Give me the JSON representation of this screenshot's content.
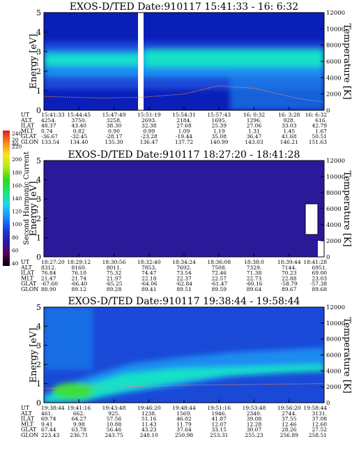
{
  "colors": {
    "spectrogram_background": "#0a1fb8",
    "low_energy_band": "#1a49d8",
    "mid_band": "#1a8cf0",
    "peak_band": "#19e0c8",
    "hot_spot": "#3bdf3b",
    "temperature_trace": "#e48a78",
    "quiet_panel": "#2a1a9a",
    "data_gap": "#ffffff"
  },
  "colorbar": {
    "label": "Second Harmonic Current",
    "ticks": [
      "40",
      "60",
      "80",
      "100",
      "120",
      "140",
      "160",
      "180",
      "200",
      "220",
      "240"
    ],
    "clipped_ticks": [
      "20",
      "40"
    ],
    "colors": [
      "#000000",
      "#5a005a",
      "#2a18a0",
      "#1840d8",
      "#1890ff",
      "#18d8e8",
      "#18e878",
      "#30d818",
      "#b0e818",
      "#f8e818",
      "#f88818",
      "#e81818"
    ]
  },
  "chart_data": [
    {
      "type": "heatmap",
      "title": "EXOS-D/TED   Date:910117   15:41:33 - 16: 6:32",
      "ylabel": "Energy [eV]",
      "ylabel_right": "Temperature [K]",
      "ylim": [
        0,
        5
      ],
      "ylim_right": [
        0,
        12000
      ],
      "yticks": [
        "0",
        "1",
        "2",
        "3",
        "4",
        "5"
      ],
      "yticks_right": [
        "0",
        "2000",
        "4000",
        "6000",
        "8000",
        "10000",
        "12000"
      ],
      "data_gap_times": [
        "15:51:19"
      ],
      "peak_energy_eV": 2.6,
      "temperature_K": {
        "x": [
          0,
          0.2,
          0.35,
          0.5,
          0.62,
          0.75,
          0.9,
          1.0
        ],
        "y": [
          1700,
          1500,
          1600,
          2000,
          3000,
          2700,
          1500,
          1000
        ]
      },
      "ephemeris": {
        "labels": [
          "UT",
          "ALT",
          "ILAT",
          "MLT",
          "GLAT",
          "GLON"
        ],
        "columns": [
          [
            "15:41:33",
            "4254.",
            "48.37",
            "0.74",
            "-36.67",
            "133.54"
          ],
          [
            "15:44:45",
            "3750.",
            "43.40",
            "0.82",
            "-32.45",
            "134.40"
          ],
          [
            "15:47:49",
            "3258.",
            "38.30",
            "0.90",
            "-28.17",
            "135.30"
          ],
          [
            "15:51:19",
            "2693.",
            "32.38",
            "0.99",
            "-23.28",
            "136.47"
          ],
          [
            "15:54:31",
            "2184.",
            "27.68",
            "1.09",
            "-19.44",
            "137.72"
          ],
          [
            "15:57:43",
            "1695.",
            "25.39",
            "1.19",
            "35.08",
            "140.99"
          ],
          [
            "16: 0:32",
            "1296.",
            "27.06",
            "1.31",
            "36.47",
            "143.03"
          ],
          [
            "16: 3:28",
            "928.",
            "33.03",
            "1.45",
            "41.68",
            "146.21"
          ],
          [
            "16: 6:32",
            "616.",
            "42.79",
            "1.67",
            "50.51",
            "151.63"
          ]
        ]
      }
    },
    {
      "type": "heatmap",
      "title": "EXOS-D/TED   Date:910117   18:27:20 - 18:41:28",
      "ylabel": "Energy [eV]",
      "ylabel_right": "Temperature [K]",
      "ylim": [
        0,
        5
      ],
      "ylim_right": [
        0,
        12000
      ],
      "yticks": [
        "0",
        "1",
        "2",
        "3",
        "4",
        "5"
      ],
      "yticks_right": [
        "0",
        "2000",
        "4000",
        "6000",
        "8000",
        "10000",
        "12000"
      ],
      "ephemeris": {
        "labels": [
          "UT",
          "ALT",
          "ILAT",
          "MLT",
          "GLAT",
          "GLON"
        ],
        "columns": [
          [
            "18:27:20",
            "8312.",
            "76.84",
            "21.47",
            "-67.60",
            "88.90"
          ],
          [
            "18:29:12",
            "8160.",
            "76.10",
            "21.74",
            "-66.40",
            "89.12"
          ],
          [
            "18:30:56",
            "8011.",
            "75.32",
            "21.97",
            "-65.25",
            "89.28"
          ],
          [
            "18:32:40",
            "7853.",
            "74.47",
            "22.18",
            "-64.06",
            "89.41"
          ],
          [
            "18:34:24",
            "7692.",
            "73.54",
            "22.37",
            "-62.84",
            "89.51"
          ],
          [
            "18:36:08",
            "7508.",
            "72.46",
            "22.57",
            "-61.47",
            "89.59"
          ],
          [
            "18:38:0",
            "7329.",
            "71.38",
            "22.73",
            "-60.16",
            "89.64"
          ],
          [
            "18:39:44",
            "7144.",
            "70.23",
            "22.88",
            "-58.79",
            "89.67"
          ],
          [
            "18:41:28",
            "6951.",
            "69.00",
            "23.03",
            "-57.38",
            "89.68"
          ]
        ]
      }
    },
    {
      "type": "heatmap",
      "title": "EXOS-D/TED   Date:910117   19:38:44 - 19:58:44",
      "ylabel": "Energy [eV]",
      "ylabel_right": "Temperature [K]",
      "ylim": [
        0,
        5
      ],
      "ylim_right": [
        0,
        12000
      ],
      "yticks": [
        "0",
        "1",
        "2",
        "3",
        "4",
        "5"
      ],
      "yticks_right": [
        "0",
        "2000",
        "4000",
        "6000",
        "8000",
        "10000",
        "12000"
      ],
      "ephemeris": {
        "labels": [
          "UT",
          "ALT",
          "ILAT",
          "MLT",
          "GLAT",
          "GLON"
        ],
        "columns": [
          [
            "19:38:44",
            "461.",
            "69.74",
            "9.41",
            "67.44",
            "223.43"
          ],
          [
            "19:41:16",
            "662.",
            "64.27",
            "9.98",
            "63.78",
            "236.71"
          ],
          [
            "19:43:48",
            "925.",
            "57.56",
            "10.88",
            "56.46",
            "243.75"
          ],
          [
            "19:46:20",
            "1238.",
            "51.16",
            "11.43",
            "43.23",
            "248.10"
          ],
          [
            "19:48:44",
            "1569.",
            "46.02",
            "11.79",
            "37.64",
            "250.98"
          ],
          [
            "19:51:16",
            "1946.",
            "41.87",
            "12.07",
            "33.15",
            "253.31"
          ],
          [
            "19:53:48",
            "2340.",
            "39.08",
            "12.28",
            "30.07",
            "255.23"
          ],
          [
            "19:56:20",
            "2744.",
            "37.55",
            "12.46",
            "28.26",
            "256.89"
          ],
          [
            "19:58:44",
            "3131.",
            "37.08",
            "12.60",
            "27.52",
            "258.51"
          ]
        ]
      }
    }
  ]
}
